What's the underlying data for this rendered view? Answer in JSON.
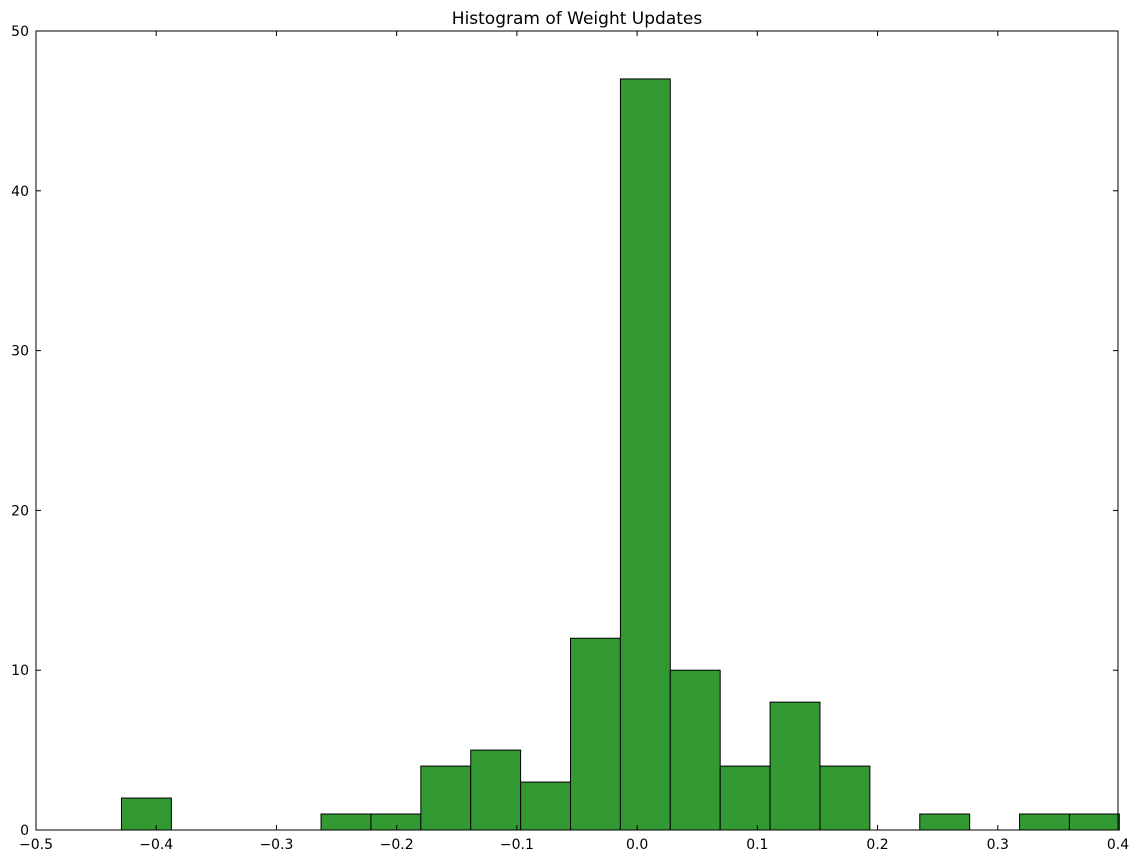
{
  "chart_data": {
    "type": "bar",
    "title": "Histogram of Weight Updates",
    "xlabel": "",
    "ylabel": "",
    "xlim": [
      -0.5,
      0.4
    ],
    "ylim": [
      0,
      50
    ],
    "grid": false,
    "bar_color": "#339933",
    "bar_edge_color": "#000000",
    "xticks": [
      -0.5,
      -0.4,
      -0.3,
      -0.2,
      -0.1,
      0.0,
      0.1,
      0.2,
      0.3,
      0.4
    ],
    "xtick_labels": [
      "−0.5",
      "−0.4",
      "−0.3",
      "−0.2",
      "−0.1",
      "0.0",
      "0.1",
      "0.2",
      "0.3",
      "0.4"
    ],
    "yticks": [
      0,
      10,
      20,
      30,
      40,
      50
    ],
    "ytick_labels": [
      "0",
      "10",
      "20",
      "30",
      "40",
      "50"
    ],
    "bins": [
      {
        "x0": -0.4289,
        "x1": -0.3874,
        "count": 2
      },
      {
        "x0": -0.3874,
        "x1": -0.3459,
        "count": 0
      },
      {
        "x0": -0.3459,
        "x1": -0.3044,
        "count": 0
      },
      {
        "x0": -0.3044,
        "x1": -0.2629,
        "count": 0
      },
      {
        "x0": -0.2629,
        "x1": -0.2214,
        "count": 1
      },
      {
        "x0": -0.2214,
        "x1": -0.1799,
        "count": 1
      },
      {
        "x0": -0.1799,
        "x1": -0.1384,
        "count": 4
      },
      {
        "x0": -0.1384,
        "x1": -0.0969,
        "count": 5
      },
      {
        "x0": -0.0969,
        "x1": -0.0554,
        "count": 3
      },
      {
        "x0": -0.0554,
        "x1": -0.0139,
        "count": 12
      },
      {
        "x0": -0.0139,
        "x1": 0.0276,
        "count": 47
      },
      {
        "x0": 0.0276,
        "x1": 0.0691,
        "count": 10
      },
      {
        "x0": 0.0691,
        "x1": 0.1106,
        "count": 4
      },
      {
        "x0": 0.1106,
        "x1": 0.1521,
        "count": 8
      },
      {
        "x0": 0.1521,
        "x1": 0.1936,
        "count": 4
      },
      {
        "x0": 0.1936,
        "x1": 0.2351,
        "count": 0
      },
      {
        "x0": 0.2351,
        "x1": 0.2766,
        "count": 1
      },
      {
        "x0": 0.2766,
        "x1": 0.3181,
        "count": 0
      },
      {
        "x0": 0.3181,
        "x1": 0.3596,
        "count": 1
      },
      {
        "x0": 0.3596,
        "x1": 0.4011,
        "count": 1
      }
    ]
  }
}
